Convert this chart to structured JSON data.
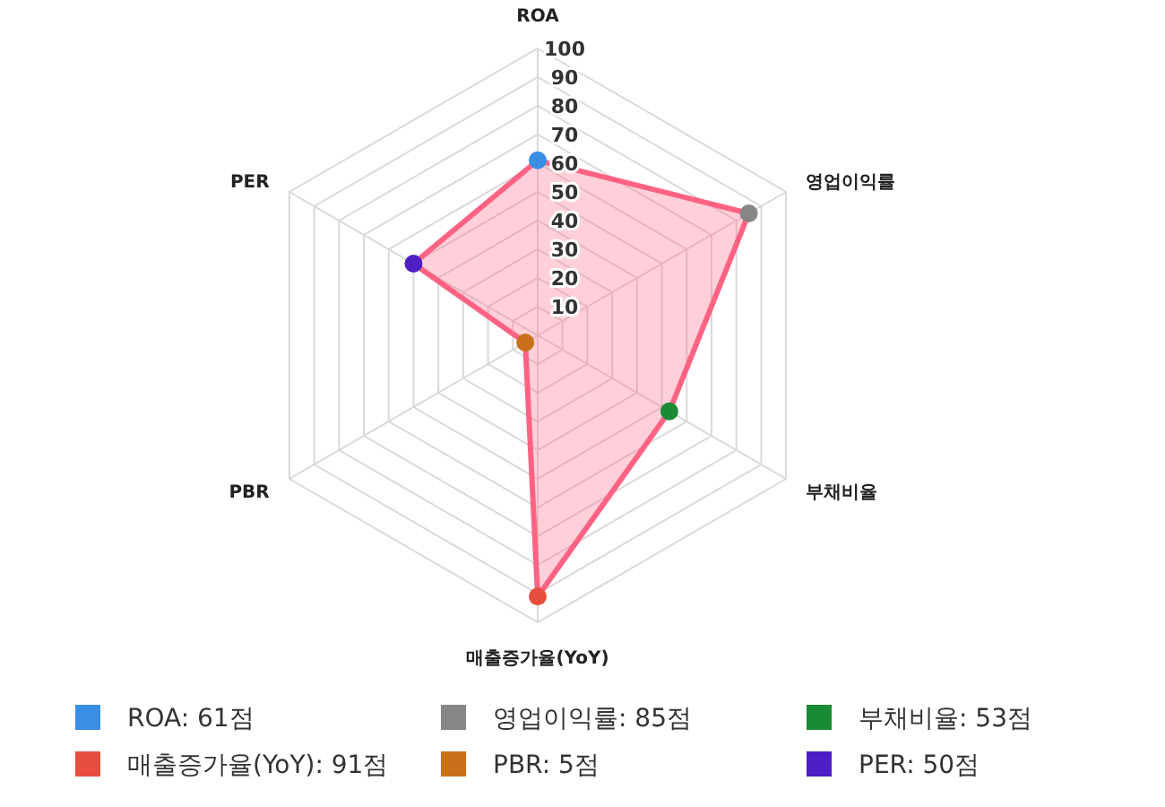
{
  "chart_data": {
    "type": "radar",
    "categories": [
      "ROA",
      "영업이익률",
      "부채비율",
      "매출증가율(YoY)",
      "PBR",
      "PER"
    ],
    "series": [
      {
        "color": "#ff6384",
        "values": [
          61,
          85,
          53,
          91,
          5,
          50
        ],
        "colors": [
          "#3a8ee6",
          "#868686",
          "#1a8a34",
          "#e84c3d",
          "#c9701a",
          "#4d1fc4"
        ]
      }
    ],
    "annotations": [
      "ROA: 61점",
      "영업이익률: 85점",
      "부채비율: 53점",
      "매출증가율(YoY): 91점",
      "PBR: 5점",
      "PER: 50점"
    ],
    "ylim": [
      0,
      100
    ],
    "yticks": [
      10,
      20,
      30,
      40,
      50,
      60,
      70,
      80,
      90,
      100
    ],
    "grid": true,
    "marker": "circle"
  }
}
